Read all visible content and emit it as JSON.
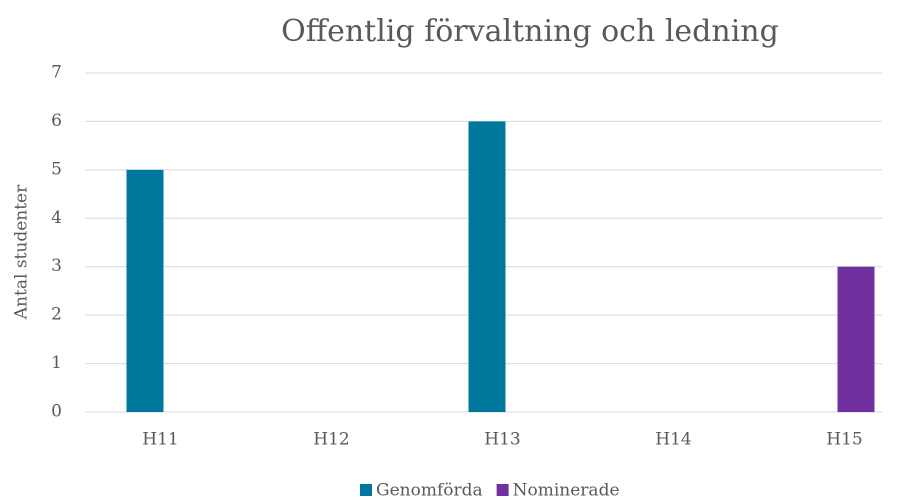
{
  "chart_data": {
    "type": "bar",
    "title": "Offentlig förvaltning och ledning",
    "y_label": "Antal studenter",
    "categories": [
      "H11",
      "H12",
      "H13",
      "H14",
      "H15"
    ],
    "series": [
      {
        "name": "Genomförda",
        "color": "#00789d",
        "values": [
          5,
          0,
          6,
          0,
          0
        ]
      },
      {
        "name": "Nominerade",
        "color": "#7030a0",
        "values": [
          0,
          0,
          0,
          0,
          3
        ]
      }
    ],
    "ylim": [
      0,
      7
    ],
    "yticks": [
      0,
      1,
      2,
      3,
      4,
      5,
      6,
      7
    ],
    "grid": true,
    "legend": "bottom"
  }
}
